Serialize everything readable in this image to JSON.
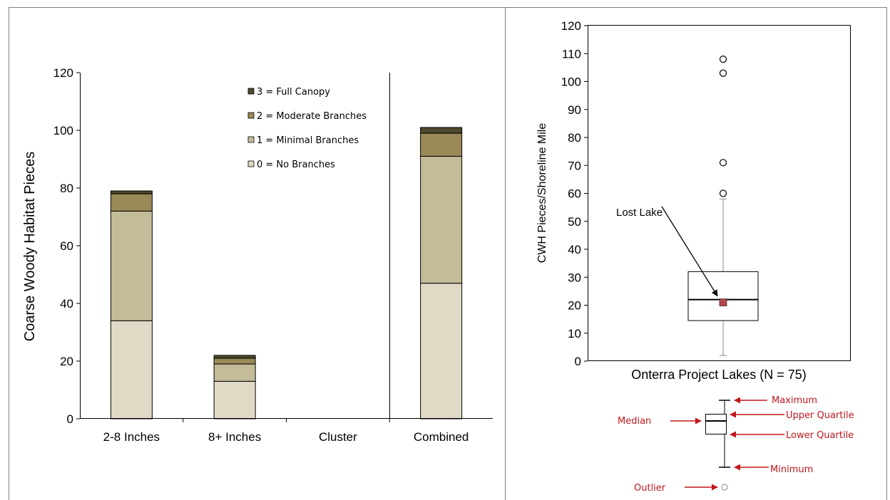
{
  "chart_data": [
    {
      "type": "bar",
      "stacked": true,
      "ylabel": "Coarse Woody Habitat Pieces",
      "ylim": [
        0,
        120
      ],
      "yticks": [
        0,
        20,
        40,
        60,
        80,
        100,
        120
      ],
      "categories": [
        "2-8 Inches",
        "8+ Inches",
        "Cluster",
        "Combined"
      ],
      "series": [
        {
          "name": "0 = No Branches",
          "color": "#dfd9c5",
          "values": [
            34,
            13,
            0,
            47
          ]
        },
        {
          "name": "1 = Minimal Branches",
          "color": "#c4bb98",
          "values": [
            38,
            6,
            0,
            44
          ]
        },
        {
          "name": "2 = Moderate Branches",
          "color": "#9a8a58",
          "values": [
            6,
            2,
            0,
            8
          ]
        },
        {
          "name": "3 = Full Canopy",
          "color": "#4e4a2e",
          "values": [
            1,
            1,
            0,
            2
          ]
        }
      ],
      "legend": {
        "placement": "top-right",
        "order": [
          "3 = Full Canopy",
          "2 = Moderate Branches",
          "1 = Minimal Branches",
          "0 = No Branches"
        ]
      },
      "grid": false
    },
    {
      "type": "box",
      "ylabel": "CWH Pieces/Shoreline Mile",
      "xlabel": "Onterra Project Lakes (N = 75)",
      "ylim": [
        0,
        120
      ],
      "yticks": [
        0,
        10,
        20,
        30,
        40,
        50,
        60,
        70,
        80,
        90,
        100,
        110,
        120
      ],
      "box": {
        "min": 2,
        "q1": 14.5,
        "median": 22,
        "q3": 32,
        "max": 58
      },
      "outliers": [
        60,
        71,
        103,
        108
      ],
      "highlight": {
        "label": "Lost Lake",
        "value": 21,
        "color": "#b0474a"
      },
      "grid": false
    }
  ],
  "box_key": {
    "color": "#c0171c",
    "labels": {
      "maximum": "Maximum",
      "upper_quartile": "Upper Quartile",
      "median": "Median",
      "lower_quartile": "Lower Quartile",
      "minimum": "Minimum",
      "outlier": "Outlier"
    }
  }
}
